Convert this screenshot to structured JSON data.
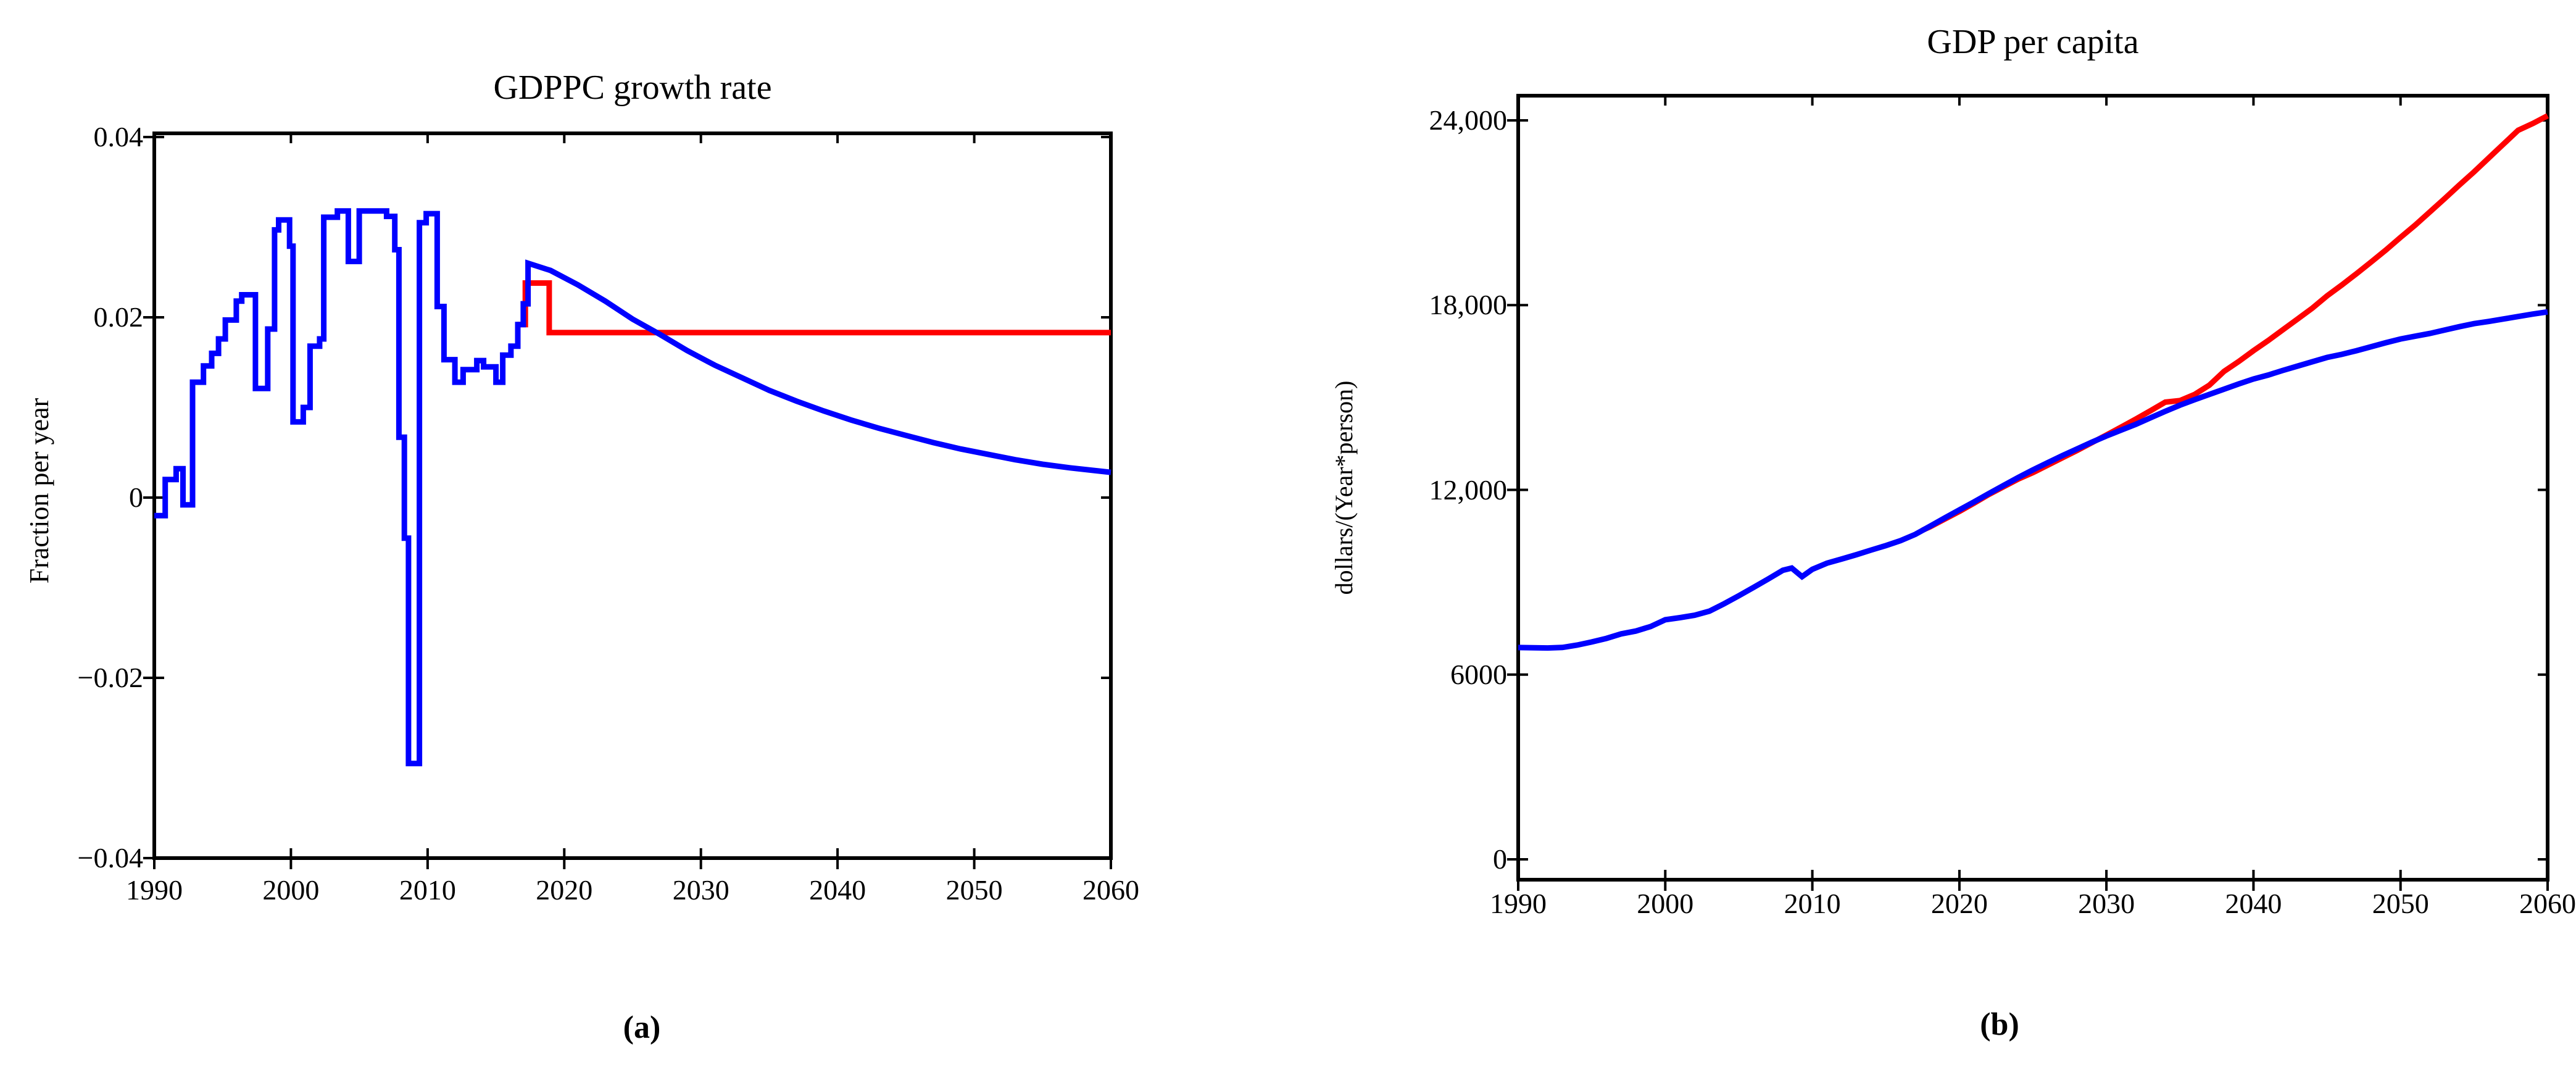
{
  "page": {
    "background": "#ffffff",
    "text_color": "#000000"
  },
  "colors": {
    "historical_projection_line": "#0000ff",
    "scenario_line": "#ff0000",
    "axis": "#000000"
  },
  "chart_data": [
    {
      "id": "a",
      "type": "line",
      "title": "GDPPC growth rate",
      "ylabel": "Fraction per year",
      "xlabel": "",
      "caption": "(a)",
      "grid": false,
      "legend": null,
      "xlim": [
        1990,
        2060
      ],
      "ylim": [
        -0.04,
        0.04
      ],
      "xticks": [
        {
          "v": 1990,
          "label": "1990"
        },
        {
          "v": 2000,
          "label": "2000"
        },
        {
          "v": 2010,
          "label": "2010"
        },
        {
          "v": 2020,
          "label": "2020"
        },
        {
          "v": 2030,
          "label": "2030"
        },
        {
          "v": 2040,
          "label": "2040"
        },
        {
          "v": 2050,
          "label": "2050"
        },
        {
          "v": 2060,
          "label": "2060"
        }
      ],
      "yticks": [
        {
          "v": 0.04,
          "label": "0.04"
        },
        {
          "v": 0.02,
          "label": "0.02"
        },
        {
          "v": 0,
          "label": "0"
        },
        {
          "v": -0.02,
          "label": "−0.02"
        },
        {
          "v": -0.04,
          "label": "−0.04"
        }
      ],
      "series": [
        {
          "name": "scenario-growth-rate",
          "color": "#ff0000",
          "width": 9,
          "mode": "steps",
          "steps": [
            [
              2016.55,
              0.0192
            ],
            [
              2017.15,
              0.0238
            ],
            [
              2018.9,
              0.0183
            ],
            [
              2060,
              0.0183
            ]
          ]
        },
        {
          "name": "historical-and-base-projection-growth-rate",
          "color": "#0000ff",
          "width": 9,
          "mode": "steps-then-line",
          "steps": [
            [
              1990.0,
              -0.002
            ],
            [
              1990.8,
              0.002
            ],
            [
              1991.6,
              0.0032
            ],
            [
              1992.1,
              -0.0008
            ],
            [
              1992.8,
              0.0128
            ],
            [
              1993.6,
              0.0146
            ],
            [
              1994.2,
              0.016
            ],
            [
              1994.7,
              0.0176
            ],
            [
              1995.2,
              0.0197
            ],
            [
              1996.0,
              0.0218
            ],
            [
              1996.4,
              0.0225
            ],
            [
              1997.4,
              0.0121
            ],
            [
              1998.3,
              0.0187
            ],
            [
              1998.8,
              0.0297
            ],
            [
              1999.1,
              0.0308
            ],
            [
              1999.9,
              0.0279
            ],
            [
              2000.15,
              0.0084
            ],
            [
              2000.9,
              0.01
            ],
            [
              2001.4,
              0.0168
            ],
            [
              2002.1,
              0.0176
            ],
            [
              2002.4,
              0.0311
            ],
            [
              2003.4,
              0.0318
            ],
            [
              2004.2,
              0.0262
            ],
            [
              2005.0,
              0.0318
            ],
            [
              2007.0,
              0.0312
            ],
            [
              2007.6,
              0.0275
            ],
            [
              2007.9,
              0.0067
            ],
            [
              2008.3,
              -0.0045
            ],
            [
              2008.6,
              -0.0295
            ],
            [
              2009.4,
              0.0305
            ],
            [
              2009.9,
              0.0315
            ],
            [
              2010.7,
              0.0212
            ],
            [
              2011.2,
              0.0153
            ],
            [
              2012.0,
              0.0128
            ],
            [
              2012.6,
              0.0142
            ],
            [
              2013.6,
              0.0152
            ],
            [
              2014.1,
              0.0145
            ],
            [
              2015.0,
              0.0128
            ],
            [
              2015.5,
              0.0158
            ],
            [
              2016.1,
              0.0168
            ],
            [
              2016.6,
              0.0192
            ],
            [
              2017.0,
              0.0215
            ],
            [
              2017.35,
              0.026
            ]
          ],
          "line": [
            [
              2017.35,
              0.026
            ],
            [
              2019,
              0.0252
            ],
            [
              2021,
              0.0236
            ],
            [
              2023,
              0.0218
            ],
            [
              2025,
              0.0198
            ],
            [
              2027,
              0.0181
            ],
            [
              2029,
              0.0163
            ],
            [
              2031,
              0.0147
            ],
            [
              2033,
              0.0133
            ],
            [
              2035,
              0.0119
            ],
            [
              2037,
              0.0107
            ],
            [
              2039,
              0.0096
            ],
            [
              2041,
              0.0086
            ],
            [
              2043,
              0.0077
            ],
            [
              2045,
              0.0069
            ],
            [
              2047,
              0.0061
            ],
            [
              2049,
              0.0054
            ],
            [
              2051,
              0.0048
            ],
            [
              2053,
              0.0042
            ],
            [
              2055,
              0.0037
            ],
            [
              2057,
              0.0033
            ],
            [
              2060,
              0.0028
            ]
          ]
        }
      ]
    },
    {
      "id": "b",
      "type": "line",
      "title": "GDP per capita",
      "ylabel": "dollars/(Year*person)",
      "xlabel": "",
      "caption": "(b)",
      "grid": false,
      "legend": null,
      "xlim": [
        1990,
        2060
      ],
      "ylim": [
        0,
        24000
      ],
      "xticks": [
        {
          "v": 1990,
          "label": "1990"
        },
        {
          "v": 2000,
          "label": "2000"
        },
        {
          "v": 2010,
          "label": "2010"
        },
        {
          "v": 2020,
          "label": "2020"
        },
        {
          "v": 2030,
          "label": "2030"
        },
        {
          "v": 2040,
          "label": "2040"
        },
        {
          "v": 2050,
          "label": "2050"
        },
        {
          "v": 2060,
          "label": "2060"
        }
      ],
      "yticks": [
        {
          "v": 24000,
          "label": "24,000"
        },
        {
          "v": 18000,
          "label": "18,000"
        },
        {
          "v": 12000,
          "label": "12,000"
        },
        {
          "v": 6000,
          "label": "6000"
        },
        {
          "v": 0,
          "label": "0"
        }
      ],
      "series": [
        {
          "name": "scenario-gdp-per-capita",
          "color": "#ff0000",
          "width": 9,
          "mode": "line",
          "line": [
            [
              2017.5,
              10690
            ],
            [
              2018,
              10800
            ],
            [
              2019,
              11050
            ],
            [
              2020,
              11300
            ],
            [
              2021,
              11570
            ],
            [
              2022,
              11850
            ],
            [
              2023,
              12100
            ],
            [
              2024,
              12350
            ],
            [
              2025,
              12560
            ],
            [
              2026,
              12800
            ],
            [
              2027,
              13040
            ],
            [
              2028,
              13280
            ],
            [
              2029,
              13530
            ],
            [
              2030,
              13780
            ],
            [
              2031,
              14040
            ],
            [
              2032,
              14300
            ],
            [
              2033,
              14570
            ],
            [
              2034,
              14850
            ],
            [
              2035,
              14900
            ],
            [
              2036,
              15100
            ],
            [
              2037,
              15400
            ],
            [
              2038,
              15850
            ],
            [
              2039,
              16170
            ],
            [
              2040,
              16520
            ],
            [
              2041,
              16850
            ],
            [
              2042,
              17200
            ],
            [
              2043,
              17550
            ],
            [
              2044,
              17900
            ],
            [
              2045,
              18300
            ],
            [
              2046,
              18650
            ],
            [
              2047,
              19020
            ],
            [
              2048,
              19400
            ],
            [
              2049,
              19790
            ],
            [
              2050,
              20200
            ],
            [
              2051,
              20600
            ],
            [
              2052,
              21030
            ],
            [
              2053,
              21460
            ],
            [
              2054,
              21900
            ],
            [
              2055,
              22330
            ],
            [
              2056,
              22780
            ],
            [
              2057,
              23230
            ],
            [
              2058,
              23680
            ],
            [
              2059,
              23900
            ],
            [
              2060,
              24150
            ]
          ]
        },
        {
          "name": "historical-and-base-projection-gdp-per-capita",
          "color": "#0000ff",
          "width": 9,
          "mode": "line",
          "line": [
            [
              1990,
              6880
            ],
            [
              1991,
              6872
            ],
            [
              1992,
              6866
            ],
            [
              1993,
              6882
            ],
            [
              1994,
              6958
            ],
            [
              1995,
              7060
            ],
            [
              1996,
              7175
            ],
            [
              1997,
              7323
            ],
            [
              1998,
              7415
            ],
            [
              1999,
              7560
            ],
            [
              2000,
              7782
            ],
            [
              2001,
              7850
            ],
            [
              2002,
              7928
            ],
            [
              2003,
              8060
            ],
            [
              2004,
              8300
            ],
            [
              2005,
              8560
            ],
            [
              2006,
              8830
            ],
            [
              2007,
              9105
            ],
            [
              2008,
              9390
            ],
            [
              2008.6,
              9460
            ],
            [
              2009.3,
              9180
            ],
            [
              2010,
              9420
            ],
            [
              2011,
              9620
            ],
            [
              2012,
              9755
            ],
            [
              2013,
              9895
            ],
            [
              2014,
              10045
            ],
            [
              2015,
              10190
            ],
            [
              2016,
              10350
            ],
            [
              2017,
              10555
            ],
            [
              2018,
              10820
            ],
            [
              2019,
              11085
            ],
            [
              2020,
              11350
            ],
            [
              2021,
              11610
            ],
            [
              2022,
              11880
            ],
            [
              2023,
              12140
            ],
            [
              2024,
              12400
            ],
            [
              2025,
              12650
            ],
            [
              2026,
              12880
            ],
            [
              2027,
              13110
            ],
            [
              2028,
              13330
            ],
            [
              2029,
              13545
            ],
            [
              2030,
              13750
            ],
            [
              2031,
              13940
            ],
            [
              2032,
              14130
            ],
            [
              2033,
              14340
            ],
            [
              2034,
              14550
            ],
            [
              2035,
              14750
            ],
            [
              2036,
              14930
            ],
            [
              2037,
              15100
            ],
            [
              2038,
              15270
            ],
            [
              2039,
              15440
            ],
            [
              2040,
              15600
            ],
            [
              2041,
              15730
            ],
            [
              2042,
              15880
            ],
            [
              2043,
              16020
            ],
            [
              2044,
              16160
            ],
            [
              2045,
              16300
            ],
            [
              2046,
              16400
            ],
            [
              2047,
              16520
            ],
            [
              2048,
              16650
            ],
            [
              2049,
              16780
            ],
            [
              2050,
              16900
            ],
            [
              2051,
              16990
            ],
            [
              2052,
              17080
            ],
            [
              2053,
              17190
            ],
            [
              2054,
              17300
            ],
            [
              2055,
              17400
            ],
            [
              2056,
              17470
            ],
            [
              2057,
              17550
            ],
            [
              2058,
              17630
            ],
            [
              2059,
              17710
            ],
            [
              2060,
              17780
            ]
          ]
        }
      ]
    }
  ]
}
